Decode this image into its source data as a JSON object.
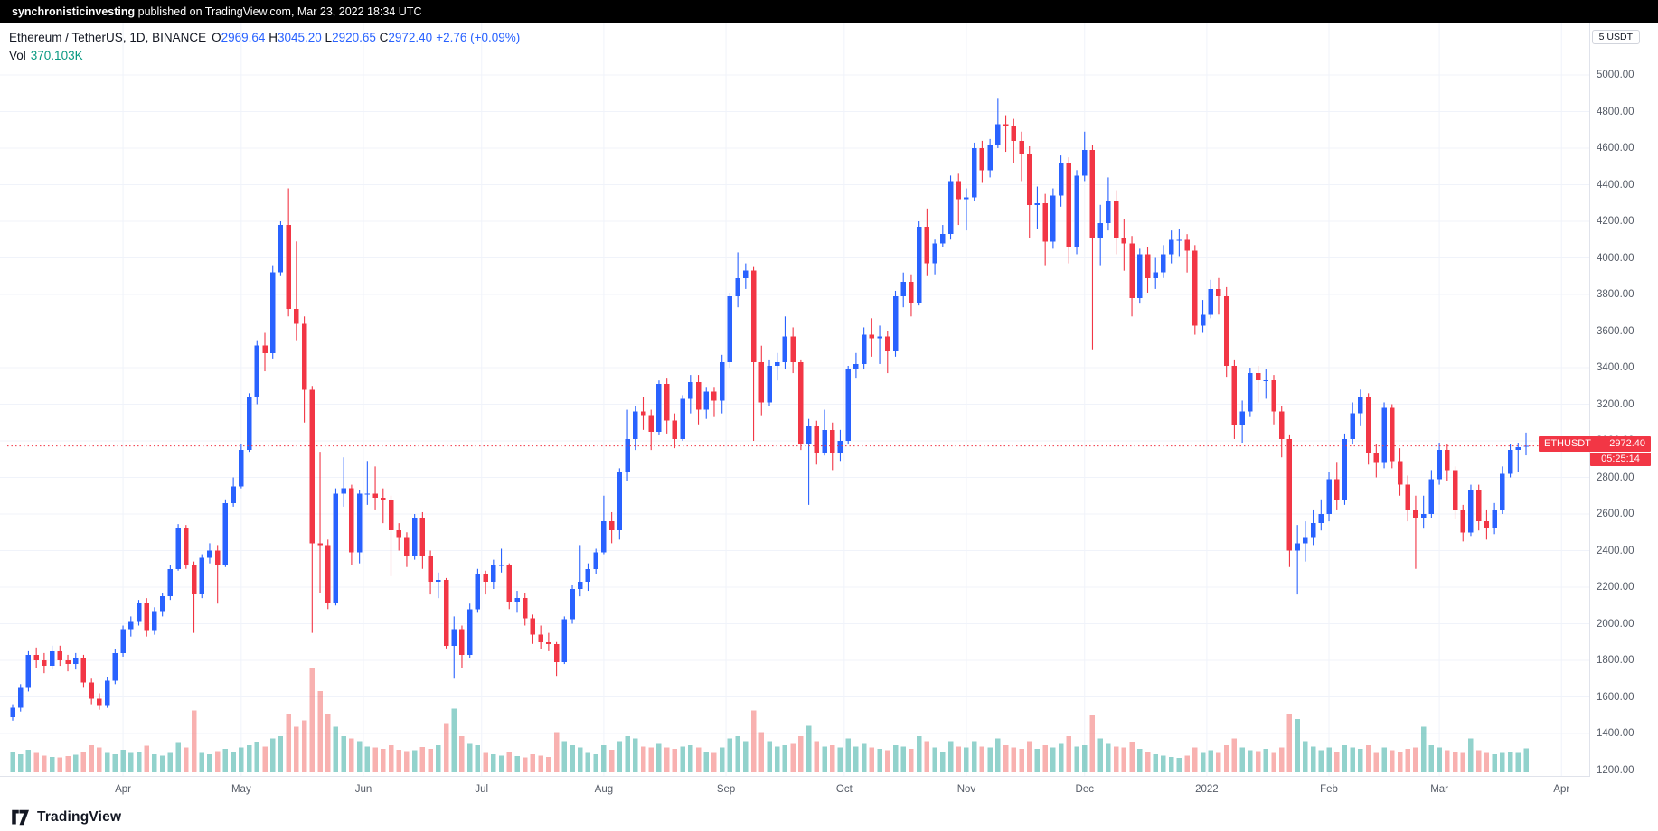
{
  "attribution": {
    "user": "synchronisticinvesting",
    "rest": " published on TradingView.com, Mar 23, 2022 18:34 UTC"
  },
  "header": {
    "symbol": "Ethereum / TetherUS",
    "sep": ", ",
    "interval": "1D",
    "exchange": "BINANCE",
    "ohlc": [
      {
        "k": "O",
        "v": "2969.64"
      },
      {
        "k": "H",
        "v": "3045.20"
      },
      {
        "k": "L",
        "v": "2920.65"
      },
      {
        "k": "C",
        "v": "2972.40"
      }
    ],
    "change": "+2.76 (+0.09%)",
    "vol_label": "Vol",
    "vol_value": "370.103K"
  },
  "axis_badge": "5 USDT",
  "price_tag": {
    "symbol": "ETHUSDT",
    "price": "2972.40",
    "countdown": "05:25:14"
  },
  "logo_text": "TradingView",
  "chart_data": {
    "type": "candlestick",
    "title": "Ethereum / TetherUS, 1D, BINANCE",
    "last_price": 2972.4,
    "y_axis": {
      "min": 1200,
      "max": 5000,
      "step": 200,
      "tick_labels": [
        "5000.00",
        "4800.00",
        "4600.00",
        "4400.00",
        "4200.00",
        "4000.00",
        "3800.00",
        "3600.00",
        "3400.00",
        "3200.00",
        "3000.00",
        "2800.00",
        "2600.00",
        "2400.00",
        "2200.00",
        "2000.00",
        "1800.00",
        "1600.00",
        "1400.00",
        "1200.00"
      ]
    },
    "x_axis": {
      "days_per_candle": 2,
      "month_labels": [
        {
          "label": "Apr",
          "day": 28
        },
        {
          "label": "May",
          "day": 58
        },
        {
          "label": "Jun",
          "day": 89
        },
        {
          "label": "Jul",
          "day": 119
        },
        {
          "label": "Aug",
          "day": 150
        },
        {
          "label": "Sep",
          "day": 181
        },
        {
          "label": "Oct",
          "day": 211
        },
        {
          "label": "Nov",
          "day": 242
        },
        {
          "label": "Dec",
          "day": 272
        },
        {
          "label": "2022",
          "day": 303
        },
        {
          "label": "Feb",
          "day": 334
        },
        {
          "label": "Mar",
          "day": 362
        },
        {
          "label": "Apr",
          "day": 393
        }
      ]
    },
    "colors": {
      "up": "#2962FF",
      "down": "#F23645",
      "volume_up": "rgba(38,166,154,0.50)",
      "volume_down": "rgba(239,83,80,0.45)",
      "price_line": "#F23645",
      "grid": "#f0f3fa",
      "accent_blue": "#2962FF",
      "vol_teal": "#089981"
    },
    "candles": [
      [
        1490,
        1560,
        1470,
        1540
      ],
      [
        1540,
        1670,
        1520,
        1650
      ],
      [
        1650,
        1850,
        1630,
        1830
      ],
      [
        1830,
        1870,
        1760,
        1800
      ],
      [
        1800,
        1840,
        1730,
        1770
      ],
      [
        1770,
        1880,
        1750,
        1850
      ],
      [
        1850,
        1880,
        1770,
        1800
      ],
      [
        1800,
        1830,
        1740,
        1780
      ],
      [
        1780,
        1840,
        1750,
        1810
      ],
      [
        1810,
        1830,
        1650,
        1680
      ],
      [
        1680,
        1700,
        1560,
        1590
      ],
      [
        1590,
        1620,
        1530,
        1550
      ],
      [
        1550,
        1710,
        1540,
        1690
      ],
      [
        1690,
        1860,
        1670,
        1840
      ],
      [
        1840,
        1990,
        1820,
        1970
      ],
      [
        1970,
        2040,
        1930,
        2010
      ],
      [
        2010,
        2130,
        1990,
        2110
      ],
      [
        2110,
        2140,
        1930,
        1960
      ],
      [
        1960,
        2090,
        1940,
        2070
      ],
      [
        2070,
        2170,
        2040,
        2150
      ],
      [
        2150,
        2320,
        2130,
        2300
      ],
      [
        2300,
        2545,
        2290,
        2520
      ],
      [
        2520,
        2540,
        2300,
        2320
      ],
      [
        2320,
        2340,
        1950,
        2160
      ],
      [
        2160,
        2380,
        2140,
        2360
      ],
      [
        2360,
        2440,
        2330,
        2400
      ],
      [
        2400,
        2430,
        2110,
        2320
      ],
      [
        2320,
        2680,
        2310,
        2660
      ],
      [
        2660,
        2800,
        2640,
        2750
      ],
      [
        2750,
        2985,
        2740,
        2950
      ],
      [
        2950,
        3260,
        2940,
        3240
      ],
      [
        3240,
        3550,
        3200,
        3520
      ],
      [
        3520,
        3590,
        3380,
        3480
      ],
      [
        3480,
        3960,
        3450,
        3920
      ],
      [
        3920,
        4200,
        3900,
        4180
      ],
      [
        4180,
        4380,
        3680,
        3720
      ],
      [
        3720,
        4090,
        3550,
        3640
      ],
      [
        3640,
        3680,
        3100,
        3280
      ],
      [
        3280,
        3300,
        1950,
        2440
      ],
      [
        2440,
        2940,
        2170,
        2430
      ],
      [
        2430,
        2460,
        2080,
        2110
      ],
      [
        2110,
        2740,
        2100,
        2710
      ],
      [
        2710,
        2910,
        2640,
        2740
      ],
      [
        2740,
        2760,
        2320,
        2390
      ],
      [
        2390,
        2730,
        2330,
        2710
      ],
      [
        2710,
        2890,
        2650,
        2710
      ],
      [
        2710,
        2860,
        2620,
        2690
      ],
      [
        2690,
        2740,
        2550,
        2680
      ],
      [
        2680,
        2700,
        2260,
        2510
      ],
      [
        2510,
        2550,
        2400,
        2470
      ],
      [
        2470,
        2500,
        2310,
        2370
      ],
      [
        2370,
        2600,
        2350,
        2580
      ],
      [
        2580,
        2610,
        2300,
        2370
      ],
      [
        2370,
        2400,
        2160,
        2230
      ],
      [
        2230,
        2280,
        2140,
        2240
      ],
      [
        2240,
        2250,
        1865,
        1880
      ],
      [
        1880,
        2040,
        1700,
        1970
      ],
      [
        1970,
        1990,
        1760,
        1830
      ],
      [
        1830,
        2110,
        1810,
        2080
      ],
      [
        2080,
        2300,
        2060,
        2275
      ],
      [
        2275,
        2290,
        2160,
        2230
      ],
      [
        2230,
        2350,
        2190,
        2320
      ],
      [
        2320,
        2410,
        2280,
        2320
      ],
      [
        2320,
        2330,
        2080,
        2120
      ],
      [
        2120,
        2180,
        2060,
        2140
      ],
      [
        2140,
        2170,
        1990,
        2030
      ],
      [
        2030,
        2050,
        1890,
        1940
      ],
      [
        1940,
        1990,
        1860,
        1900
      ],
      [
        1900,
        1950,
        1850,
        1890
      ],
      [
        1890,
        1900,
        1715,
        1790
      ],
      [
        1790,
        2040,
        1780,
        2025
      ],
      [
        2025,
        2210,
        2000,
        2190
      ],
      [
        2190,
        2430,
        2150,
        2230
      ],
      [
        2230,
        2330,
        2180,
        2300
      ],
      [
        2300,
        2410,
        2270,
        2390
      ],
      [
        2390,
        2700,
        2380,
        2560
      ],
      [
        2560,
        2610,
        2440,
        2510
      ],
      [
        2510,
        2850,
        2460,
        2830
      ],
      [
        2830,
        3170,
        2780,
        3010
      ],
      [
        3010,
        3190,
        2950,
        3160
      ],
      [
        3160,
        3240,
        3060,
        3140
      ],
      [
        3140,
        3170,
        2950,
        3050
      ],
      [
        3050,
        3330,
        3030,
        3310
      ],
      [
        3310,
        3340,
        3040,
        3110
      ],
      [
        3110,
        3150,
        2960,
        3010
      ],
      [
        3010,
        3250,
        3000,
        3230
      ],
      [
        3230,
        3360,
        3150,
        3320
      ],
      [
        3320,
        3360,
        3090,
        3170
      ],
      [
        3170,
        3290,
        3120,
        3270
      ],
      [
        3270,
        3290,
        3130,
        3220
      ],
      [
        3220,
        3470,
        3150,
        3430
      ],
      [
        3430,
        3810,
        3400,
        3790
      ],
      [
        3790,
        4030,
        3730,
        3890
      ],
      [
        3890,
        3970,
        3830,
        3930
      ],
      [
        3930,
        3950,
        3000,
        3430
      ],
      [
        3430,
        3520,
        3140,
        3210
      ],
      [
        3210,
        3440,
        3190,
        3410
      ],
      [
        3410,
        3480,
        3330,
        3430
      ],
      [
        3430,
        3680,
        3390,
        3570
      ],
      [
        3570,
        3620,
        3370,
        3430
      ],
      [
        3430,
        3440,
        2950,
        2980
      ],
      [
        2980,
        3120,
        2650,
        3080
      ],
      [
        3080,
        3110,
        2870,
        2930
      ],
      [
        2930,
        3170,
        2920,
        3060
      ],
      [
        3060,
        3100,
        2840,
        2930
      ],
      [
        2930,
        3060,
        2890,
        3000
      ],
      [
        3000,
        3410,
        2980,
        3390
      ],
      [
        3390,
        3480,
        3340,
        3420
      ],
      [
        3420,
        3620,
        3390,
        3580
      ],
      [
        3580,
        3670,
        3460,
        3560
      ],
      [
        3560,
        3630,
        3420,
        3570
      ],
      [
        3570,
        3600,
        3370,
        3490
      ],
      [
        3490,
        3820,
        3460,
        3790
      ],
      [
        3790,
        3920,
        3730,
        3870
      ],
      [
        3870,
        3910,
        3680,
        3750
      ],
      [
        3750,
        4200,
        3740,
        4170
      ],
      [
        4170,
        4270,
        3900,
        3970
      ],
      [
        3970,
        4100,
        3910,
        4080
      ],
      [
        4080,
        4180,
        4060,
        4130
      ],
      [
        4130,
        4450,
        4100,
        4420
      ],
      [
        4420,
        4460,
        4180,
        4320
      ],
      [
        4320,
        4380,
        4150,
        4330
      ],
      [
        4330,
        4630,
        4310,
        4600
      ],
      [
        4600,
        4640,
        4410,
        4480
      ],
      [
        4480,
        4650,
        4440,
        4620
      ],
      [
        4620,
        4870,
        4600,
        4730
      ],
      [
        4730,
        4780,
        4580,
        4720
      ],
      [
        4720,
        4760,
        4520,
        4640
      ],
      [
        4640,
        4690,
        4420,
        4570
      ],
      [
        4570,
        4610,
        4110,
        4290
      ],
      [
        4290,
        4390,
        4160,
        4300
      ],
      [
        4300,
        4350,
        3960,
        4090
      ],
      [
        4090,
        4380,
        4050,
        4340
      ],
      [
        4340,
        4560,
        4280,
        4520
      ],
      [
        4520,
        4550,
        3970,
        4060
      ],
      [
        4060,
        4480,
        4020,
        4450
      ],
      [
        4450,
        4690,
        4420,
        4590
      ],
      [
        4590,
        4620,
        3500,
        4110
      ],
      [
        4110,
        4290,
        3960,
        4190
      ],
      [
        4190,
        4440,
        4150,
        4310
      ],
      [
        4310,
        4370,
        4020,
        4110
      ],
      [
        4110,
        4210,
        3930,
        4080
      ],
      [
        4080,
        4120,
        3680,
        3780
      ],
      [
        3780,
        4050,
        3750,
        4020
      ],
      [
        4020,
        4060,
        3810,
        3890
      ],
      [
        3890,
        4000,
        3830,
        3920
      ],
      [
        3920,
        4070,
        3890,
        4020
      ],
      [
        4020,
        4150,
        3970,
        4100
      ],
      [
        4100,
        4160,
        4010,
        4100
      ],
      [
        4100,
        4130,
        3920,
        4040
      ],
      [
        4040,
        4070,
        3580,
        3630
      ],
      [
        3630,
        3770,
        3590,
        3690
      ],
      [
        3690,
        3880,
        3670,
        3830
      ],
      [
        3830,
        3890,
        3690,
        3790
      ],
      [
        3790,
        3840,
        3350,
        3410
      ],
      [
        3410,
        3440,
        3010,
        3090
      ],
      [
        3090,
        3220,
        2990,
        3160
      ],
      [
        3160,
        3400,
        3130,
        3370
      ],
      [
        3370,
        3410,
        3210,
        3330
      ],
      [
        3330,
        3390,
        3230,
        3330
      ],
      [
        3330,
        3360,
        3090,
        3160
      ],
      [
        3160,
        3190,
        2910,
        3010
      ],
      [
        3010,
        3030,
        2310,
        2400
      ],
      [
        2400,
        2540,
        2160,
        2440
      ],
      [
        2440,
        2560,
        2340,
        2470
      ],
      [
        2470,
        2620,
        2430,
        2550
      ],
      [
        2550,
        2680,
        2510,
        2600
      ],
      [
        2600,
        2830,
        2560,
        2790
      ],
      [
        2790,
        2880,
        2620,
        2680
      ],
      [
        2680,
        3040,
        2650,
        3010
      ],
      [
        3010,
        3210,
        2980,
        3150
      ],
      [
        3150,
        3280,
        3080,
        3240
      ],
      [
        3240,
        3260,
        2870,
        2930
      ],
      [
        2930,
        2980,
        2800,
        2880
      ],
      [
        2880,
        3210,
        2850,
        3180
      ],
      [
        3180,
        3200,
        2850,
        2890
      ],
      [
        2890,
        2960,
        2700,
        2760
      ],
      [
        2760,
        2810,
        2560,
        2620
      ],
      [
        2620,
        2700,
        2300,
        2580
      ],
      [
        2580,
        2700,
        2520,
        2600
      ],
      [
        2600,
        2840,
        2580,
        2790
      ],
      [
        2790,
        2990,
        2760,
        2950
      ],
      [
        2950,
        2980,
        2780,
        2840
      ],
      [
        2840,
        2860,
        2570,
        2620
      ],
      [
        2620,
        2650,
        2450,
        2500
      ],
      [
        2500,
        2760,
        2480,
        2730
      ],
      [
        2730,
        2760,
        2510,
        2560
      ],
      [
        2560,
        2620,
        2460,
        2520
      ],
      [
        2520,
        2660,
        2490,
        2620
      ],
      [
        2620,
        2860,
        2600,
        2820
      ],
      [
        2820,
        2980,
        2800,
        2950
      ],
      [
        2950,
        2990,
        2830,
        2965
      ],
      [
        2969.64,
        3045.2,
        2920.65,
        2972.4
      ]
    ],
    "volumes": [
      320,
      280,
      350,
      300,
      260,
      240,
      230,
      250,
      270,
      310,
      420,
      380,
      300,
      280,
      350,
      300,
      320,
      410,
      280,
      260,
      300,
      450,
      380,
      950,
      300,
      280,
      330,
      360,
      310,
      380,
      420,
      460,
      400,
      520,
      560,
      900,
      700,
      800,
      1600,
      1250,
      900,
      700,
      560,
      520,
      480,
      400,
      380,
      360,
      420,
      350,
      330,
      340,
      390,
      360,
      420,
      760,
      980,
      560,
      440,
      420,
      300,
      280,
      260,
      320,
      250,
      230,
      280,
      260,
      240,
      620,
      480,
      420,
      380,
      300,
      280,
      420,
      350,
      480,
      560,
      520,
      400,
      380,
      440,
      380,
      360,
      400,
      420,
      380,
      320,
      300,
      380,
      520,
      560,
      480,
      950,
      620,
      480,
      400,
      420,
      440,
      560,
      720,
      480,
      400,
      420,
      380,
      520,
      400,
      440,
      380,
      360,
      340,
      420,
      400,
      360,
      560,
      480,
      380,
      320,
      480,
      400,
      380,
      480,
      400,
      380,
      520,
      420,
      380,
      360,
      480,
      360,
      420,
      380,
      440,
      560,
      400,
      420,
      880,
      520,
      440,
      400,
      380,
      460,
      360,
      320,
      280,
      260,
      240,
      220,
      260,
      380,
      300,
      340,
      300,
      420,
      520,
      380,
      340,
      330,
      360,
      300,
      380,
      900,
      820,
      480,
      400,
      340,
      380,
      320,
      420,
      380,
      360,
      420,
      300,
      380,
      340,
      320,
      360,
      380,
      700,
      420,
      380,
      340,
      320,
      300,
      520,
      340,
      300,
      280,
      300,
      320,
      300,
      370
    ]
  }
}
